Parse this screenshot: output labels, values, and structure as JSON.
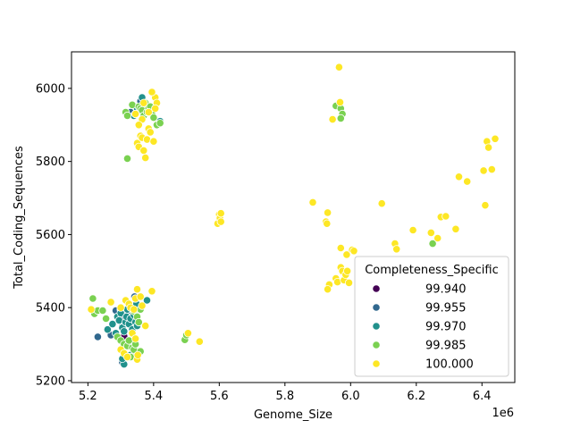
{
  "chart_data": {
    "type": "scatter",
    "xlabel": "Genome_Size",
    "ylabel": "Total_Coding_Sequences",
    "x_offset_label": "1e6",
    "xlim": [
      5.15,
      6.5
    ],
    "ylim": [
      5195,
      6100
    ],
    "x_ticks": [
      5.2,
      5.4,
      5.6,
      5.8,
      6.0,
      6.2,
      6.4
    ],
    "x_tick_labels": [
      "5.2",
      "5.4",
      "5.6",
      "5.8",
      "6.0",
      "6.2",
      "6.4"
    ],
    "y_ticks": [
      5200,
      5400,
      5600,
      5800,
      6000
    ],
    "y_tick_labels": [
      "5200",
      "5400",
      "5600",
      "5800",
      "6000"
    ],
    "grid": false,
    "legend": {
      "title": "Completeness_Specific",
      "placement": "bottom-right",
      "entries": [
        {
          "label": "99.940",
          "color": "#440154"
        },
        {
          "label": "99.955",
          "color": "#31688e"
        },
        {
          "label": "99.970",
          "color": "#21918c"
        },
        {
          "label": "99.985",
          "color": "#7ad151"
        },
        {
          "label": "100.000",
          "color": "#fde725"
        }
      ]
    },
    "point_edge_color": "#ffffff",
    "series": [
      {
        "legend_value": "99.940",
        "color": "#440154",
        "points": [
          [
            5.295,
            5318
          ],
          [
            5.31,
            5322
          ]
        ]
      },
      {
        "legend_value": "99.955",
        "color": "#31688e",
        "points": [
          [
            5.23,
            5320
          ],
          [
            5.27,
            5325
          ],
          [
            5.285,
            5392
          ],
          [
            5.3,
            5370
          ],
          [
            5.305,
            5350
          ],
          [
            5.31,
            5390
          ],
          [
            5.318,
            5360
          ],
          [
            5.325,
            5380
          ],
          [
            5.342,
            5430
          ],
          [
            5.355,
            5900
          ],
          [
            5.36,
            5965
          ],
          [
            5.33,
            5935
          ],
          [
            5.305,
            5250
          ]
        ]
      },
      {
        "legend_value": "99.970",
        "color": "#21918c",
        "points": [
          [
            5.26,
            5340
          ],
          [
            5.275,
            5355
          ],
          [
            5.285,
            5330
          ],
          [
            5.29,
            5375
          ],
          [
            5.295,
            5365
          ],
          [
            5.3,
            5395
          ],
          [
            5.3,
            5385
          ],
          [
            5.305,
            5345
          ],
          [
            5.31,
            5335
          ],
          [
            5.315,
            5360
          ],
          [
            5.318,
            5375
          ],
          [
            5.32,
            5395
          ],
          [
            5.325,
            5355
          ],
          [
            5.33,
            5370
          ],
          [
            5.335,
            5340
          ],
          [
            5.338,
            5395
          ],
          [
            5.34,
            5380
          ],
          [
            5.345,
            5360
          ],
          [
            5.348,
            5410
          ],
          [
            5.35,
            5350
          ],
          [
            5.33,
            5300
          ],
          [
            5.33,
            5270
          ],
          [
            5.31,
            5245
          ],
          [
            5.305,
            5260
          ],
          [
            5.38,
            5420
          ],
          [
            5.365,
            5975
          ],
          [
            5.37,
            5955
          ],
          [
            5.34,
            5925
          ],
          [
            5.35,
            5945
          ],
          [
            5.38,
            5945
          ],
          [
            5.42,
            5910
          ],
          [
            5.36,
            5940
          ]
        ]
      },
      {
        "legend_value": "99.985",
        "color": "#7ad151",
        "points": [
          [
            5.215,
            5425
          ],
          [
            5.22,
            5383
          ],
          [
            5.23,
            5392
          ],
          [
            5.245,
            5392
          ],
          [
            5.255,
            5370
          ],
          [
            5.29,
            5320
          ],
          [
            5.3,
            5310
          ],
          [
            5.31,
            5300
          ],
          [
            5.32,
            5295
          ],
          [
            5.325,
            5310
          ],
          [
            5.335,
            5290
          ],
          [
            5.34,
            5285
          ],
          [
            5.345,
            5300
          ],
          [
            5.33,
            5265
          ],
          [
            5.36,
            5280
          ],
          [
            5.34,
            5390
          ],
          [
            5.35,
            5375
          ],
          [
            5.355,
            5360
          ],
          [
            5.36,
            5395
          ],
          [
            5.315,
            5935
          ],
          [
            5.32,
            5925
          ],
          [
            5.335,
            5955
          ],
          [
            5.345,
            5930
          ],
          [
            5.355,
            5950
          ],
          [
            5.36,
            5945
          ],
          [
            5.365,
            5940
          ],
          [
            5.37,
            5925
          ],
          [
            5.375,
            5960
          ],
          [
            5.38,
            5935
          ],
          [
            5.385,
            5945
          ],
          [
            5.39,
            5950
          ],
          [
            5.395,
            5930
          ],
          [
            5.4,
            5920
          ],
          [
            5.41,
            5900
          ],
          [
            5.42,
            5905
          ],
          [
            5.32,
            5808
          ],
          [
            5.495,
            5312
          ],
          [
            5.5,
            5325
          ],
          [
            5.955,
            5952
          ],
          [
            5.97,
            5945
          ],
          [
            5.975,
            5930
          ],
          [
            5.97,
            5918
          ],
          [
            6.25,
            5575
          ]
        ]
      },
      {
        "legend_value": "100.000",
        "color": "#fde725",
        "points": [
          [
            5.21,
            5395
          ],
          [
            5.27,
            5415
          ],
          [
            5.3,
            5400
          ],
          [
            5.315,
            5420
          ],
          [
            5.325,
            5410
          ],
          [
            5.33,
            5400
          ],
          [
            5.34,
            5395
          ],
          [
            5.345,
            5425
          ],
          [
            5.35,
            5450
          ],
          [
            5.36,
            5430
          ],
          [
            5.365,
            5405
          ],
          [
            5.375,
            5350
          ],
          [
            5.395,
            5445
          ],
          [
            5.3,
            5285
          ],
          [
            5.31,
            5275
          ],
          [
            5.32,
            5265
          ],
          [
            5.35,
            5258
          ],
          [
            5.352,
            5270
          ],
          [
            5.335,
            5330
          ],
          [
            5.345,
            5315
          ],
          [
            5.35,
            5850
          ],
          [
            5.355,
            5840
          ],
          [
            5.36,
            5870
          ],
          [
            5.365,
            5865
          ],
          [
            5.37,
            5830
          ],
          [
            5.375,
            5810
          ],
          [
            5.38,
            5860
          ],
          [
            5.385,
            5890
          ],
          [
            5.39,
            5880
          ],
          [
            5.4,
            5855
          ],
          [
            5.405,
            5975
          ],
          [
            5.395,
            5990
          ],
          [
            5.41,
            5960
          ],
          [
            5.405,
            5945
          ],
          [
            5.385,
            5935
          ],
          [
            5.365,
            5915
          ],
          [
            5.37,
            5960
          ],
          [
            5.355,
            5900
          ],
          [
            5.345,
            5930
          ],
          [
            5.505,
            5330
          ],
          [
            5.54,
            5307
          ],
          [
            5.595,
            5630
          ],
          [
            5.6,
            5655
          ],
          [
            5.602,
            5645
          ],
          [
            5.605,
            5635
          ],
          [
            5.605,
            5658
          ],
          [
            5.885,
            5688
          ],
          [
            5.925,
            5635
          ],
          [
            5.928,
            5630
          ],
          [
            5.93,
            5660
          ],
          [
            5.935,
            5463
          ],
          [
            5.93,
            5450
          ],
          [
            5.945,
            5915
          ],
          [
            5.955,
            5480
          ],
          [
            5.96,
            5470
          ],
          [
            5.965,
            6058
          ],
          [
            5.968,
            5962
          ],
          [
            5.97,
            5563
          ],
          [
            5.97,
            5510
          ],
          [
            5.975,
            5500
          ],
          [
            5.98,
            5475
          ],
          [
            5.985,
            5490
          ],
          [
            5.988,
            5545
          ],
          [
            5.99,
            5500
          ],
          [
            5.995,
            5468
          ],
          [
            6.005,
            5558
          ],
          [
            6.01,
            5555
          ],
          [
            6.095,
            5685
          ],
          [
            6.135,
            5575
          ],
          [
            6.14,
            5560
          ],
          [
            6.19,
            5612
          ],
          [
            6.245,
            5605
          ],
          [
            6.265,
            5590
          ],
          [
            6.275,
            5648
          ],
          [
            6.29,
            5650
          ],
          [
            6.32,
            5615
          ],
          [
            6.33,
            5758
          ],
          [
            6.355,
            5745
          ],
          [
            6.405,
            5775
          ],
          [
            6.41,
            5680
          ],
          [
            6.415,
            5855
          ],
          [
            6.42,
            5838
          ],
          [
            6.43,
            5778
          ],
          [
            6.44,
            5862
          ]
        ]
      }
    ]
  }
}
